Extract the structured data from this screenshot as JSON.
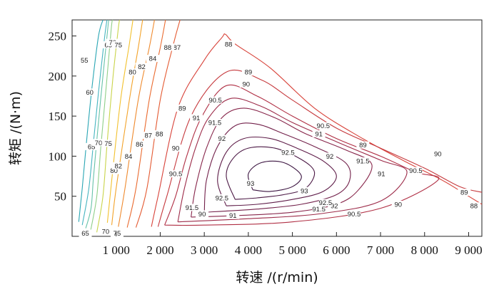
{
  "chart_data": {
    "type": "contour",
    "xlabel": "转速 /(r/min)",
    "ylabel": "转矩 /(N·m)",
    "xlim": [
      0,
      9300
    ],
    "ylim": [
      0,
      270
    ],
    "x_ticks": [
      1000,
      2000,
      3000,
      4000,
      5000,
      6000,
      7000,
      8000,
      9000
    ],
    "x_tick_labels": [
      "1 000",
      "2 000",
      "3 000",
      "4 000",
      "5 000",
      "6 000",
      "7 000",
      "8 000",
      "9 000"
    ],
    "y_ticks": [
      50,
      100,
      150,
      200,
      250
    ],
    "y_tick_labels": [
      "50",
      "100",
      "150",
      "200",
      "250"
    ],
    "grid": false,
    "series": [
      {
        "level": "55",
        "color": "#2aa6b4",
        "points": [
          [
            150,
            18
          ],
          [
            230,
            60
          ],
          [
            330,
            120
          ],
          [
            460,
            190
          ],
          [
            600,
            250
          ],
          [
            700,
            270
          ]
        ],
        "labels": [
          {
            "text": "55",
            "x": 280,
            "y": 220
          },
          {
            "text": "65",
            "x": 300,
            "y": 4
          }
        ]
      },
      {
        "level": "60",
        "color": "#45b4c0",
        "points": [
          [
            230,
            14
          ],
          [
            380,
            60
          ],
          [
            490,
            120
          ],
          [
            600,
            180
          ],
          [
            730,
            245
          ],
          [
            790,
            270
          ]
        ],
        "labels": [
          {
            "text": "60",
            "x": 400,
            "y": 180
          }
        ]
      },
      {
        "level": "65",
        "color": "#66c2a8",
        "points": [
          [
            310,
            10
          ],
          [
            430,
            35
          ],
          [
            480,
            70
          ],
          [
            560,
            120
          ],
          [
            700,
            200
          ],
          [
            830,
            270
          ]
        ],
        "labels": [
          {
            "text": "65",
            "x": 440,
            "y": 112
          },
          {
            "text": "65",
            "x": 820,
            "y": 239
          }
        ]
      },
      {
        "level": "70",
        "color": "#8fcf88",
        "points": [
          [
            420,
            7
          ],
          [
            560,
            50
          ],
          [
            650,
            110
          ],
          [
            780,
            190
          ],
          [
            890,
            260
          ],
          [
            920,
            270
          ]
        ],
        "labels": [
          {
            "text": "70",
            "x": 600,
            "y": 117
          },
          {
            "text": "70",
            "x": 920,
            "y": 242
          },
          {
            "text": "70",
            "x": 760,
            "y": 6
          }
        ]
      },
      {
        "level": "75",
        "color": "#c9d44a",
        "points": [
          [
            560,
            5
          ],
          [
            700,
            50
          ],
          [
            800,
            120
          ],
          [
            930,
            200
          ],
          [
            1050,
            260
          ],
          [
            1080,
            270
          ]
        ],
        "labels": [
          {
            "text": "75",
            "x": 820,
            "y": 116
          },
          {
            "text": "75",
            "x": 1050,
            "y": 239
          },
          {
            "text": "75",
            "x": 1020,
            "y": 4
          }
        ]
      },
      {
        "level": "80",
        "color": "#f2c12e",
        "points": [
          [
            800,
            17
          ],
          [
            900,
            70
          ],
          [
            1100,
            170
          ],
          [
            1300,
            240
          ],
          [
            1380,
            270
          ]
        ],
        "labels": [
          {
            "text": "80",
            "x": 950,
            "y": 82
          },
          {
            "text": "80",
            "x": 1370,
            "y": 205
          }
        ]
      },
      {
        "level": "82",
        "color": "#f3a32a",
        "points": [
          [
            900,
            14
          ],
          [
            1000,
            60
          ],
          [
            1300,
            170
          ],
          [
            1500,
            235
          ],
          [
            1600,
            270
          ]
        ],
        "labels": [
          {
            "text": "82",
            "x": 1050,
            "y": 88
          },
          {
            "text": "82",
            "x": 1580,
            "y": 212
          }
        ]
      },
      {
        "level": "84",
        "color": "#ef8a2e",
        "points": [
          [
            1050,
            12
          ],
          [
            1200,
            60
          ],
          [
            1500,
            170
          ],
          [
            1750,
            235
          ],
          [
            1870,
            270
          ]
        ],
        "labels": [
          {
            "text": "84",
            "x": 1280,
            "y": 100
          },
          {
            "text": "84",
            "x": 1830,
            "y": 222
          }
        ]
      },
      {
        "level": "86",
        "color": "#ea6b30",
        "points": [
          [
            1250,
            11
          ],
          [
            1450,
            60
          ],
          [
            1750,
            170
          ],
          [
            2000,
            235
          ],
          [
            2120,
            270
          ]
        ],
        "labels": [
          {
            "text": "86",
            "x": 1530,
            "y": 115
          }
        ]
      },
      {
        "level": "87",
        "color": "#e45a32",
        "points": [
          [
            1450,
            11
          ],
          [
            1700,
            60
          ],
          [
            2000,
            170
          ],
          [
            2300,
            240
          ],
          [
            2450,
            270
          ]
        ],
        "labels": [
          {
            "text": "87",
            "x": 1730,
            "y": 126
          },
          {
            "text": "87",
            "x": 2380,
            "y": 236
          }
        ]
      },
      {
        "level": "88",
        "color": "#d8433a",
        "points": [
          [
            1800,
            12
          ],
          [
            1950,
            50
          ],
          [
            2400,
            160
          ],
          [
            3000,
            220
          ],
          [
            3400,
            248
          ],
          [
            3480,
            252
          ],
          [
            3700,
            240
          ],
          [
            4500,
            210
          ],
          [
            5500,
            160
          ],
          [
            6500,
            125
          ],
          [
            7500,
            95
          ],
          [
            8400,
            70
          ],
          [
            9000,
            50
          ],
          [
            9300,
            40
          ]
        ],
        "labels": [
          {
            "text": "88",
            "x": 1980,
            "y": 128
          },
          {
            "text": "88",
            "x": 2170,
            "y": 236
          },
          {
            "text": "88",
            "x": 3550,
            "y": 240
          },
          {
            "text": "88",
            "x": 9120,
            "y": 38
          }
        ]
      },
      {
        "level": "89",
        "color": "#c63a3e",
        "points": [
          [
            1950,
            12
          ],
          [
            2150,
            50
          ],
          [
            2700,
            150
          ],
          [
            3500,
            205
          ],
          [
            4300,
            195
          ],
          [
            5000,
            170
          ],
          [
            6000,
            135
          ],
          [
            7000,
            110
          ],
          [
            8000,
            85
          ],
          [
            8800,
            62
          ],
          [
            9300,
            55
          ]
        ],
        "labels": [
          {
            "text": "89",
            "x": 2500,
            "y": 160
          },
          {
            "text": "89",
            "x": 4000,
            "y": 205
          },
          {
            "text": "89",
            "x": 6600,
            "y": 114
          },
          {
            "text": "89",
            "x": 8900,
            "y": 55
          }
        ]
      },
      {
        "level": "90",
        "color": "#b02f44",
        "points": [
          [
            2100,
            14
          ],
          [
            2350,
            50
          ],
          [
            2600,
            100
          ],
          [
            2950,
            150
          ],
          [
            3500,
            188
          ],
          [
            4200,
            175
          ],
          [
            5000,
            150
          ],
          [
            6000,
            122
          ],
          [
            7000,
            100
          ],
          [
            7800,
            80
          ],
          [
            8300,
            70
          ],
          [
            7000,
            35
          ],
          [
            5000,
            18
          ],
          [
            3000,
            14
          ],
          [
            2100,
            14
          ]
        ],
        "labels": [
          {
            "text": "90",
            "x": 2350,
            "y": 110
          },
          {
            "text": "90",
            "x": 3950,
            "y": 190
          },
          {
            "text": "90",
            "x": 2950,
            "y": 28
          },
          {
            "text": "90",
            "x": 7400,
            "y": 40
          },
          {
            "text": "90",
            "x": 8300,
            "y": 103
          }
        ]
      },
      {
        "level": "90.5",
        "color": "#9c2a48",
        "points": [
          [
            2400,
            18
          ],
          [
            2550,
            60
          ],
          [
            2800,
            110
          ],
          [
            3100,
            148
          ],
          [
            3600,
            172
          ],
          [
            4300,
            162
          ],
          [
            5000,
            142
          ],
          [
            6000,
            118
          ],
          [
            7000,
            95
          ],
          [
            7600,
            80
          ],
          [
            7000,
            44
          ],
          [
            5600,
            28
          ],
          [
            4000,
            22
          ],
          [
            2400,
            18
          ]
        ],
        "labels": [
          {
            "text": "90.5",
            "x": 3250,
            "y": 170
          },
          {
            "text": "90.5",
            "x": 5700,
            "y": 138
          },
          {
            "text": "90.5",
            "x": 2350,
            "y": 78
          },
          {
            "text": "90.5",
            "x": 6400,
            "y": 28
          },
          {
            "text": "90.5",
            "x": 7800,
            "y": 82
          }
        ]
      },
      {
        "level": "91",
        "color": "#87254a",
        "points": [
          [
            2700,
            24
          ],
          [
            2800,
            60
          ],
          [
            3050,
            110
          ],
          [
            3400,
            148
          ],
          [
            3900,
            160
          ],
          [
            4600,
            148
          ],
          [
            5300,
            128
          ],
          [
            6200,
            108
          ],
          [
            6800,
            90
          ],
          [
            6500,
            58
          ],
          [
            6000,
            40
          ],
          [
            5000,
            30
          ],
          [
            3800,
            26
          ],
          [
            2700,
            24
          ]
        ],
        "labels": [
          {
            "text": "91",
            "x": 2820,
            "y": 148
          },
          {
            "text": "91",
            "x": 5600,
            "y": 128
          },
          {
            "text": "91",
            "x": 3650,
            "y": 26
          },
          {
            "text": "91",
            "x": 7020,
            "y": 78
          }
        ]
      },
      {
        "level": "91.5",
        "color": "#72204a",
        "points": [
          [
            3000,
            30
          ],
          [
            3050,
            70
          ],
          [
            3300,
            112
          ],
          [
            3700,
            138
          ],
          [
            4200,
            140
          ],
          [
            4800,
            128
          ],
          [
            5500,
            112
          ],
          [
            6200,
            92
          ],
          [
            6300,
            70
          ],
          [
            6000,
            52
          ],
          [
            5200,
            40
          ],
          [
            4200,
            34
          ],
          [
            3000,
            30
          ]
        ],
        "labels": [
          {
            "text": "91.5",
            "x": 3240,
            "y": 142
          },
          {
            "text": "91.5",
            "x": 2720,
            "y": 36
          },
          {
            "text": "91.5",
            "x": 5600,
            "y": 34
          },
          {
            "text": "91.5",
            "x": 6600,
            "y": 94
          }
        ]
      },
      {
        "level": "92",
        "color": "#5e1c48",
        "points": [
          [
            3500,
            38
          ],
          [
            3300,
            70
          ],
          [
            3500,
            105
          ],
          [
            3900,
            122
          ],
          [
            4500,
            122
          ],
          [
            5100,
            110
          ],
          [
            5700,
            94
          ],
          [
            6000,
            75
          ],
          [
            5700,
            56
          ],
          [
            5000,
            46
          ],
          [
            4200,
            40
          ],
          [
            3500,
            38
          ]
        ],
        "labels": [
          {
            "text": "92",
            "x": 3400,
            "y": 122
          },
          {
            "text": "92",
            "x": 5850,
            "y": 100
          },
          {
            "text": "92",
            "x": 5950,
            "y": 38
          }
        ]
      },
      {
        "level": "92.5",
        "color": "#4b1844",
        "points": [
          [
            3700,
            46
          ],
          [
            3500,
            75
          ],
          [
            3650,
            97
          ],
          [
            4000,
            110
          ],
          [
            4600,
            110
          ],
          [
            5200,
            96
          ],
          [
            5500,
            80
          ],
          [
            5300,
            60
          ],
          [
            4800,
            52
          ],
          [
            4200,
            48
          ],
          [
            3700,
            46
          ]
        ],
        "labels": [
          {
            "text": "92.5",
            "x": 4900,
            "y": 105
          },
          {
            "text": "92.5",
            "x": 3400,
            "y": 48
          },
          {
            "text": "92.5",
            "x": 5750,
            "y": 42
          }
        ]
      },
      {
        "level": "93",
        "color": "#3b1440",
        "points": [
          [
            4100,
            58
          ],
          [
            4000,
            78
          ],
          [
            4300,
            92
          ],
          [
            4800,
            92
          ],
          [
            5200,
            76
          ],
          [
            5000,
            62
          ],
          [
            4500,
            56
          ],
          [
            4100,
            58
          ]
        ],
        "labels": [
          {
            "text": "93",
            "x": 4050,
            "y": 66
          },
          {
            "text": "93",
            "x": 5270,
            "y": 57
          }
        ]
      }
    ]
  }
}
